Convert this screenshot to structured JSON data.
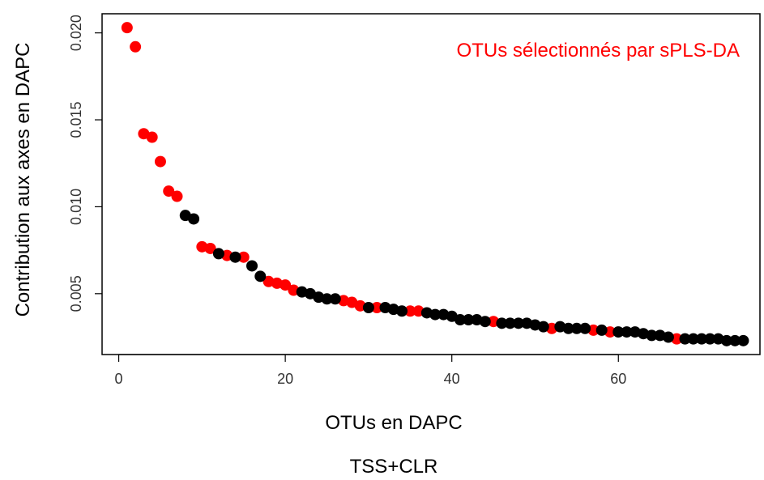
{
  "chart_data": {
    "type": "scatter",
    "title": "",
    "xlabel": "OTUs en DAPC",
    "ylabel": "Contribution aux axes en DAPC",
    "caption": "TSS+CLR",
    "annotation": "OTUs sélectionnés par sPLS-DA",
    "annotation_color": "#ff0000",
    "xlim": [
      -2,
      77
    ],
    "ylim": [
      0.0015,
      0.0211
    ],
    "x_ticks": [
      0,
      20,
      40,
      60
    ],
    "y_ticks": [
      0.005,
      0.01,
      0.015,
      0.02
    ],
    "x_tick_labels": [
      "0",
      "20",
      "40",
      "60"
    ],
    "y_tick_labels": [
      "0.005",
      "0.010",
      "0.015",
      "0.020"
    ],
    "grid": false,
    "legend": "none",
    "colors": {
      "selected": "#ff0000",
      "other": "#000000"
    },
    "series": [
      {
        "name": "OTUs sélectionnés par sPLS-DA",
        "color": "#ff0000",
        "x": [
          1,
          2,
          3,
          4,
          5,
          6,
          7,
          10,
          11,
          13,
          15,
          18,
          19,
          20,
          21,
          27,
          28,
          29,
          31,
          35,
          36,
          45,
          52,
          57,
          59,
          67
        ],
        "y": [
          0.0203,
          0.0192,
          0.0142,
          0.014,
          0.0126,
          0.0109,
          0.0106,
          0.0077,
          0.0076,
          0.0072,
          0.0071,
          0.0057,
          0.0056,
          0.0055,
          0.0052,
          0.0046,
          0.0045,
          0.0043,
          0.0042,
          0.004,
          0.004,
          0.0034,
          0.003,
          0.0029,
          0.0028,
          0.0024
        ]
      },
      {
        "color": "#000000",
        "x": [
          8,
          9,
          12,
          14,
          16,
          17,
          22,
          23,
          24,
          25,
          26,
          30,
          32,
          33,
          34,
          37,
          38,
          39,
          40,
          41,
          42,
          43,
          44,
          46,
          47,
          48,
          49,
          50,
          51,
          53,
          54,
          55,
          56,
          58,
          60,
          61,
          62,
          63,
          64,
          65,
          66,
          68,
          69,
          70,
          71,
          72,
          73,
          74,
          75
        ],
        "y": [
          0.0095,
          0.0093,
          0.0073,
          0.0071,
          0.0066,
          0.006,
          0.0051,
          0.005,
          0.0048,
          0.0047,
          0.0047,
          0.0042,
          0.0042,
          0.0041,
          0.004,
          0.0039,
          0.0038,
          0.0038,
          0.0037,
          0.0035,
          0.0035,
          0.0035,
          0.0034,
          0.0033,
          0.0033,
          0.0033,
          0.0033,
          0.0032,
          0.0031,
          0.0031,
          0.003,
          0.003,
          0.003,
          0.0029,
          0.0028,
          0.0028,
          0.0028,
          0.0027,
          0.0026,
          0.0026,
          0.0025,
          0.0024,
          0.0024,
          0.0024,
          0.0024,
          0.0024,
          0.0023,
          0.0023,
          0.0023
        ]
      }
    ]
  }
}
